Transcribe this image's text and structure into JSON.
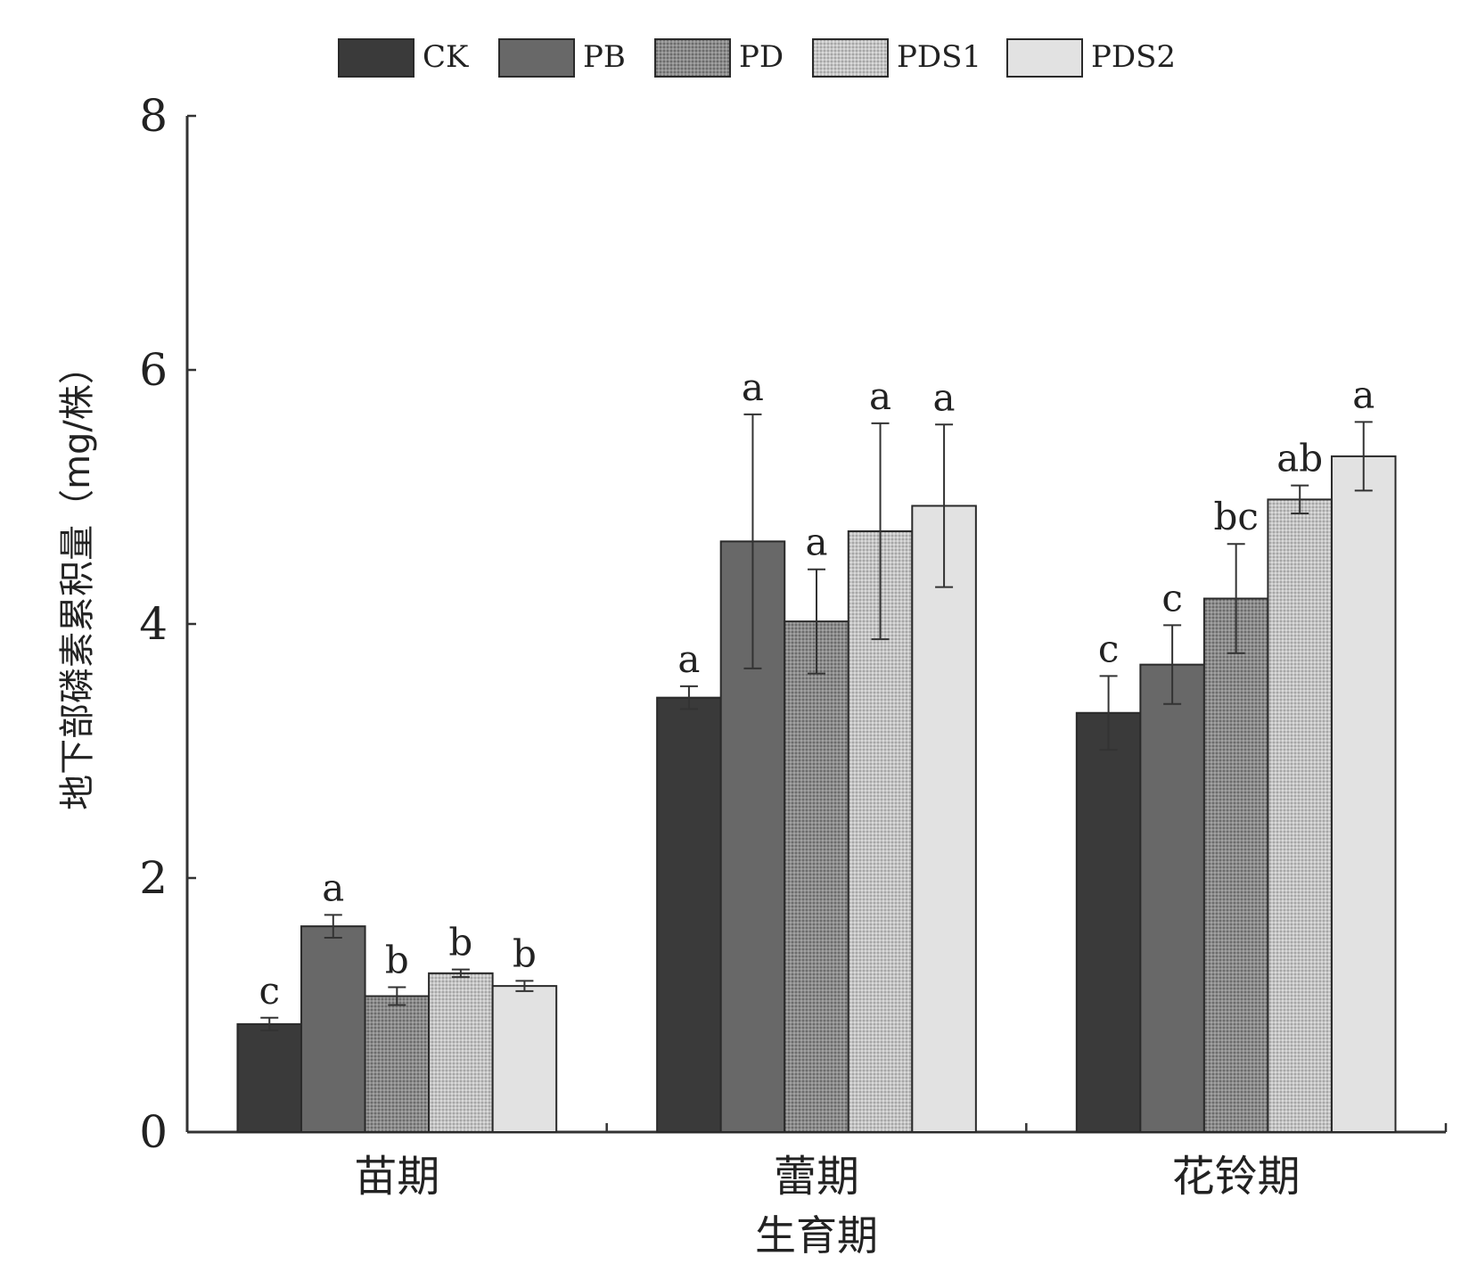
{
  "chart_data": {
    "type": "bar",
    "title": "",
    "xlabel": "生育期",
    "ylabel": "地下部磷素累积量（mg/株）",
    "ylim": [
      0,
      8
    ],
    "yticks": [
      "0",
      "2",
      "4",
      "6",
      "8"
    ],
    "categories": [
      "苗期",
      "蕾期",
      "花铃期"
    ],
    "legend_position": "top",
    "grid": false,
    "series": [
      {
        "name": "CK",
        "color": "#3a3a3a",
        "pattern": "solid",
        "values": [
          0.85,
          3.42,
          3.3
        ],
        "errors": [
          0.05,
          0.09,
          0.29
        ],
        "letters": [
          "c",
          "a",
          "c"
        ]
      },
      {
        "name": "PB",
        "color": "#686868",
        "pattern": "solid",
        "values": [
          1.62,
          4.65,
          3.68
        ],
        "errors": [
          0.09,
          1.0,
          0.31
        ],
        "letters": [
          "a",
          "a",
          "c"
        ]
      },
      {
        "name": "PD",
        "color": "#8a8a8a",
        "pattern": "dots-dark",
        "values": [
          1.07,
          4.02,
          4.2
        ],
        "errors": [
          0.07,
          0.41,
          0.43
        ],
        "letters": [
          "b",
          "a",
          "bc"
        ]
      },
      {
        "name": "PDS1",
        "color": "#bdbdbd",
        "pattern": "dots-light",
        "values": [
          1.25,
          4.73,
          4.98
        ],
        "errors": [
          0.03,
          0.85,
          0.11
        ],
        "letters": [
          "b",
          "a",
          "ab"
        ]
      },
      {
        "name": "PDS2",
        "color": "#e2e2e2",
        "pattern": "solid",
        "values": [
          1.15,
          4.93,
          5.32
        ],
        "errors": [
          0.04,
          0.64,
          0.27
        ],
        "letters": [
          "b",
          "a",
          "a"
        ]
      }
    ]
  }
}
